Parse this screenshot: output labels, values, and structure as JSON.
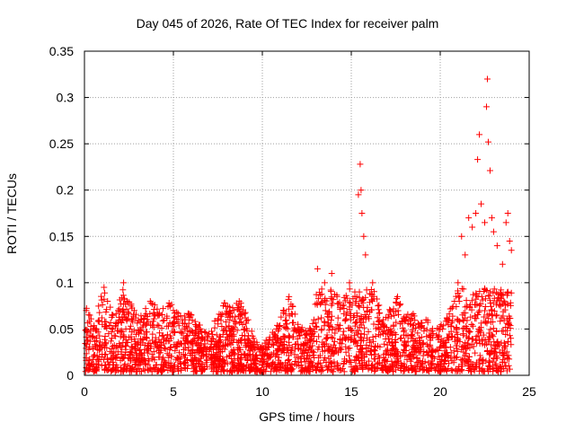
{
  "chart_data": {
    "type": "scatter",
    "title": "Day 045 of 2026, Rate Of TEC Index for receiver palm",
    "xlabel": "GPS time / hours",
    "ylabel": "ROTI / TECUs",
    "xlim": [
      0,
      25
    ],
    "ylim": [
      0,
      0.35
    ],
    "xticks": [
      "0",
      "5",
      "10",
      "15",
      "20",
      "25"
    ],
    "yticks": [
      "0",
      "0.05",
      "0.1",
      "0.15",
      "0.2",
      "0.25",
      "0.3",
      "0.35"
    ],
    "grid": true,
    "marker": "+",
    "color": "#ff0000",
    "series": [
      {
        "name": "ROTI",
        "points": [
          [
            0.1,
            0.07
          ],
          [
            0.3,
            0.065
          ],
          [
            0.5,
            0.05
          ],
          [
            1.1,
            0.095
          ],
          [
            1.3,
            0.08
          ],
          [
            1.6,
            0.065
          ],
          [
            1.9,
            0.07
          ],
          [
            2.2,
            0.1
          ],
          [
            2.4,
            0.08
          ],
          [
            2.8,
            0.07
          ],
          [
            3.2,
            0.06
          ],
          [
            3.7,
            0.08
          ],
          [
            4.2,
            0.065
          ],
          [
            4.8,
            0.075
          ],
          [
            5.0,
            0.07
          ],
          [
            5.5,
            0.06
          ],
          [
            6.0,
            0.065
          ],
          [
            6.5,
            0.05
          ],
          [
            7.0,
            0.045
          ],
          [
            7.5,
            0.06
          ],
          [
            7.8,
            0.075
          ],
          [
            8.4,
            0.07
          ],
          [
            8.7,
            0.08
          ],
          [
            9.2,
            0.06
          ],
          [
            9.5,
            0.04
          ],
          [
            9.9,
            0.03
          ],
          [
            10.3,
            0.035
          ],
          [
            10.8,
            0.05
          ],
          [
            11.2,
            0.07
          ],
          [
            11.5,
            0.085
          ],
          [
            12.0,
            0.055
          ],
          [
            12.5,
            0.045
          ],
          [
            12.9,
            0.06
          ],
          [
            13.1,
            0.115
          ],
          [
            13.5,
            0.1
          ],
          [
            13.9,
            0.11
          ],
          [
            14.2,
            0.085
          ],
          [
            14.5,
            0.075
          ],
          [
            14.9,
            0.1
          ],
          [
            15.2,
            0.09
          ],
          [
            15.4,
            0.195
          ],
          [
            15.5,
            0.228
          ],
          [
            15.55,
            0.2
          ],
          [
            15.6,
            0.175
          ],
          [
            15.7,
            0.15
          ],
          [
            15.8,
            0.13
          ],
          [
            16.2,
            0.1
          ],
          [
            16.5,
            0.075
          ],
          [
            16.8,
            0.06
          ],
          [
            17.2,
            0.07
          ],
          [
            17.6,
            0.085
          ],
          [
            18.0,
            0.06
          ],
          [
            18.4,
            0.065
          ],
          [
            18.8,
            0.055
          ],
          [
            19.2,
            0.06
          ],
          [
            19.6,
            0.045
          ],
          [
            20.0,
            0.05
          ],
          [
            20.4,
            0.06
          ],
          [
            20.8,
            0.08
          ],
          [
            21.0,
            0.1
          ],
          [
            21.2,
            0.15
          ],
          [
            21.4,
            0.13
          ],
          [
            21.6,
            0.17
          ],
          [
            21.8,
            0.16
          ],
          [
            22.0,
            0.175
          ],
          [
            22.1,
            0.233
          ],
          [
            22.2,
            0.26
          ],
          [
            22.3,
            0.185
          ],
          [
            22.5,
            0.165
          ],
          [
            22.6,
            0.29
          ],
          [
            22.65,
            0.32
          ],
          [
            22.7,
            0.252
          ],
          [
            22.8,
            0.221
          ],
          [
            22.9,
            0.17
          ],
          [
            23.0,
            0.155
          ],
          [
            23.2,
            0.14
          ],
          [
            23.5,
            0.12
          ],
          [
            23.7,
            0.165
          ],
          [
            23.8,
            0.175
          ],
          [
            23.9,
            0.145
          ],
          [
            24.0,
            0.135
          ]
        ]
      }
    ]
  }
}
